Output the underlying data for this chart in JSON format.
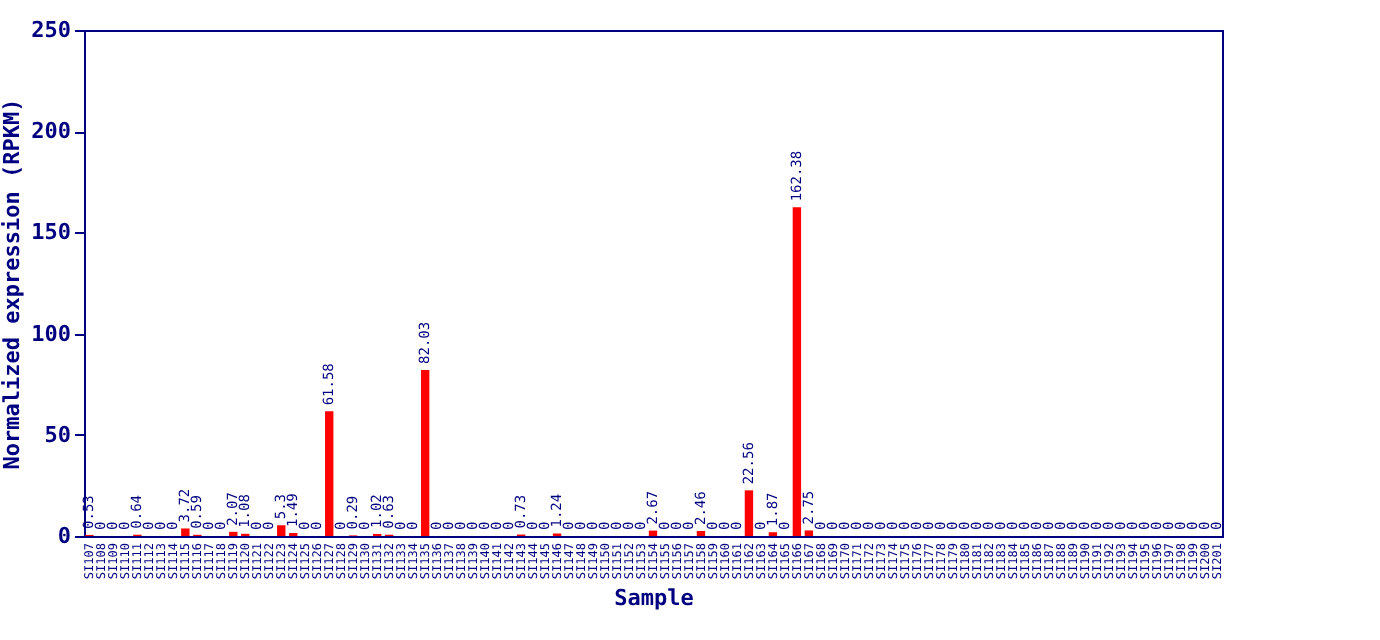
{
  "chart_data": {
    "type": "bar",
    "xlabel": "Sample",
    "ylabel": "Normalized expression (RPKM)",
    "categories": [
      "SI107",
      "SI108",
      "SI109",
      "SI110",
      "SI111",
      "SI112",
      "SI113",
      "SI114",
      "SI115",
      "SI116",
      "SI117",
      "SI118",
      "SI119",
      "SI120",
      "SI121",
      "SI122",
      "SI123",
      "SI124",
      "SI125",
      "SI126",
      "SI127",
      "SI128",
      "SI129",
      "SI130",
      "SI131",
      "SI132",
      "SI133",
      "SI134",
      "SI135",
      "SI136",
      "SI137",
      "SI138",
      "SI139",
      "SI140",
      "SI141",
      "SI142",
      "SI143",
      "SI144",
      "SI145",
      "SI146",
      "SI147",
      "SI148",
      "SI149",
      "SI150",
      "SI151",
      "SI152",
      "SI153",
      "SI154",
      "SI155",
      "SI156",
      "SI157",
      "SI158",
      "SI159",
      "SI160",
      "SI161",
      "SI162",
      "SI163",
      "SI164",
      "SI165",
      "SI166",
      "SI167",
      "SI168",
      "SI169",
      "SI170",
      "SI171",
      "SI172",
      "SI173",
      "SI174",
      "SI175",
      "SI176",
      "SI177",
      "SI178",
      "SI179",
      "SI180",
      "SI181",
      "SI182",
      "SI183",
      "SI184",
      "SI185",
      "SI186",
      "SI187",
      "SI188",
      "SI189",
      "SI190",
      "SI191",
      "SI192",
      "SI193",
      "SI194",
      "SI195",
      "SI196",
      "SI197",
      "SI198",
      "SI199",
      "SI200",
      "SI201"
    ],
    "values": [
      0.53,
      0,
      0,
      0,
      0.64,
      0,
      0,
      0,
      3.72,
      0.59,
      0,
      0,
      2.07,
      1.08,
      0,
      0,
      5.3,
      1.49,
      0,
      0,
      61.58,
      0,
      0.29,
      0,
      1.02,
      0.63,
      0,
      0,
      82.03,
      0,
      0,
      0,
      0,
      0,
      0,
      0,
      0.73,
      0,
      0,
      1.24,
      0,
      0,
      0,
      0,
      0,
      0,
      0,
      2.67,
      0,
      0,
      0,
      2.46,
      0,
      0,
      0,
      22.56,
      0,
      1.87,
      0,
      162.38,
      2.75,
      0,
      0,
      0,
      0,
      0,
      0,
      0,
      0,
      0,
      0,
      0,
      0,
      0,
      0,
      0,
      0,
      0,
      0,
      0,
      0,
      0,
      0,
      0,
      0,
      0,
      0,
      0,
      0,
      0,
      0,
      0,
      0,
      0,
      0
    ],
    "color": "#ff0000",
    "ylim": [
      0,
      250
    ],
    "yticks": [
      0,
      50,
      100,
      150,
      200,
      250
    ],
    "grid": false,
    "data_labels": true
  }
}
